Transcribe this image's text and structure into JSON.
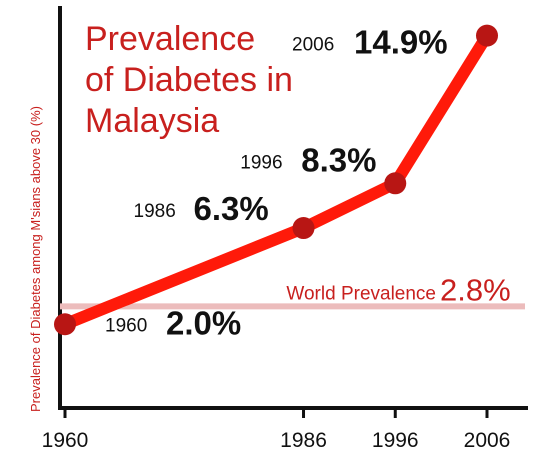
{
  "chart_data": {
    "type": "line",
    "title_lines": [
      "Prevalence",
      "of Diabetes in",
      "Malaysia"
    ],
    "ylabel": "Prevalence of Diabetes among M'sians above 30 (%)",
    "xlabel": "",
    "x_ticks": [
      "1960",
      "1986",
      "1996",
      "2006"
    ],
    "series": [
      {
        "x": [
          1960,
          1986,
          1996,
          2006
        ],
        "values": [
          2.0,
          6.3,
          8.3,
          14.9
        ],
        "point_year_labels": [
          "1960",
          "1986",
          "1996",
          "2006"
        ],
        "point_value_labels": [
          "2.0%",
          "6.3%",
          "8.3%",
          "14.9%"
        ]
      }
    ],
    "reference_line": {
      "label": "World Prevalence",
      "value": 2.8,
      "value_label": "2.8%"
    },
    "xlim": [
      1960,
      2006
    ],
    "ylim": [
      0,
      16
    ],
    "grid": false,
    "colors": {
      "line": "#ff1a0a",
      "marker": "#b81614",
      "reference": "#ecbcbc",
      "title": "#c8201e",
      "axis": "#111111"
    }
  }
}
